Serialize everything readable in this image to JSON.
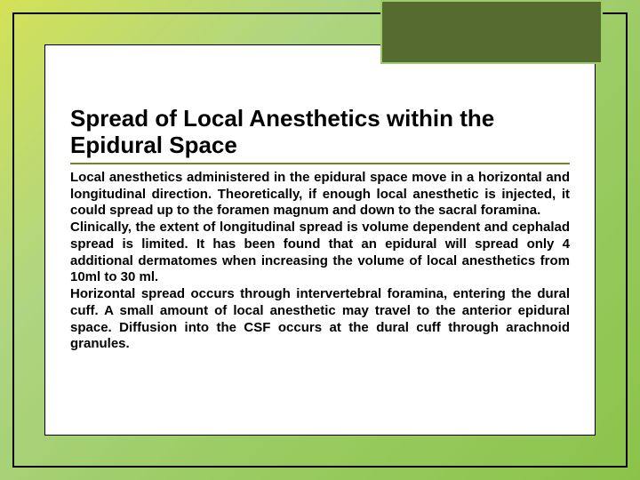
{
  "slide": {
    "heading": "Spread of Local Anesthetics within the Epidural Space",
    "paragraph1": "Local anesthetics administered in the epidural space move in a horizontal and longitudinal direction. Theoretically, if enough local anesthetic is injected, it could spread up to the foramen magnum and down to the sacral foramina.",
    "paragraph2": "Clinically, the extent of longitudinal spread is volume dependent and cephalad spread is limited.  It has been found that an epidural will spread only 4 additional dermatomes when increasing the volume of local anesthetics from 10ml to 30 ml.",
    "paragraph3": " Horizontal spread  occurs  through  intervertebral  foramina, entering  the dural  cuff.   A  small  amount  of  local anesthetic may travel to the anterior epidural space.  Diffusion into the CSF occurs at the dural cuff through arachnoid granules."
  },
  "styling": {
    "title_box_bg": "#556b2f",
    "title_box_border": "#9ccc65",
    "heading_underline": "#6b8e23",
    "gradient_start": "#d4e157",
    "gradient_end": "#8bc34a",
    "heading_fontsize": 26,
    "body_fontsize": 15
  }
}
